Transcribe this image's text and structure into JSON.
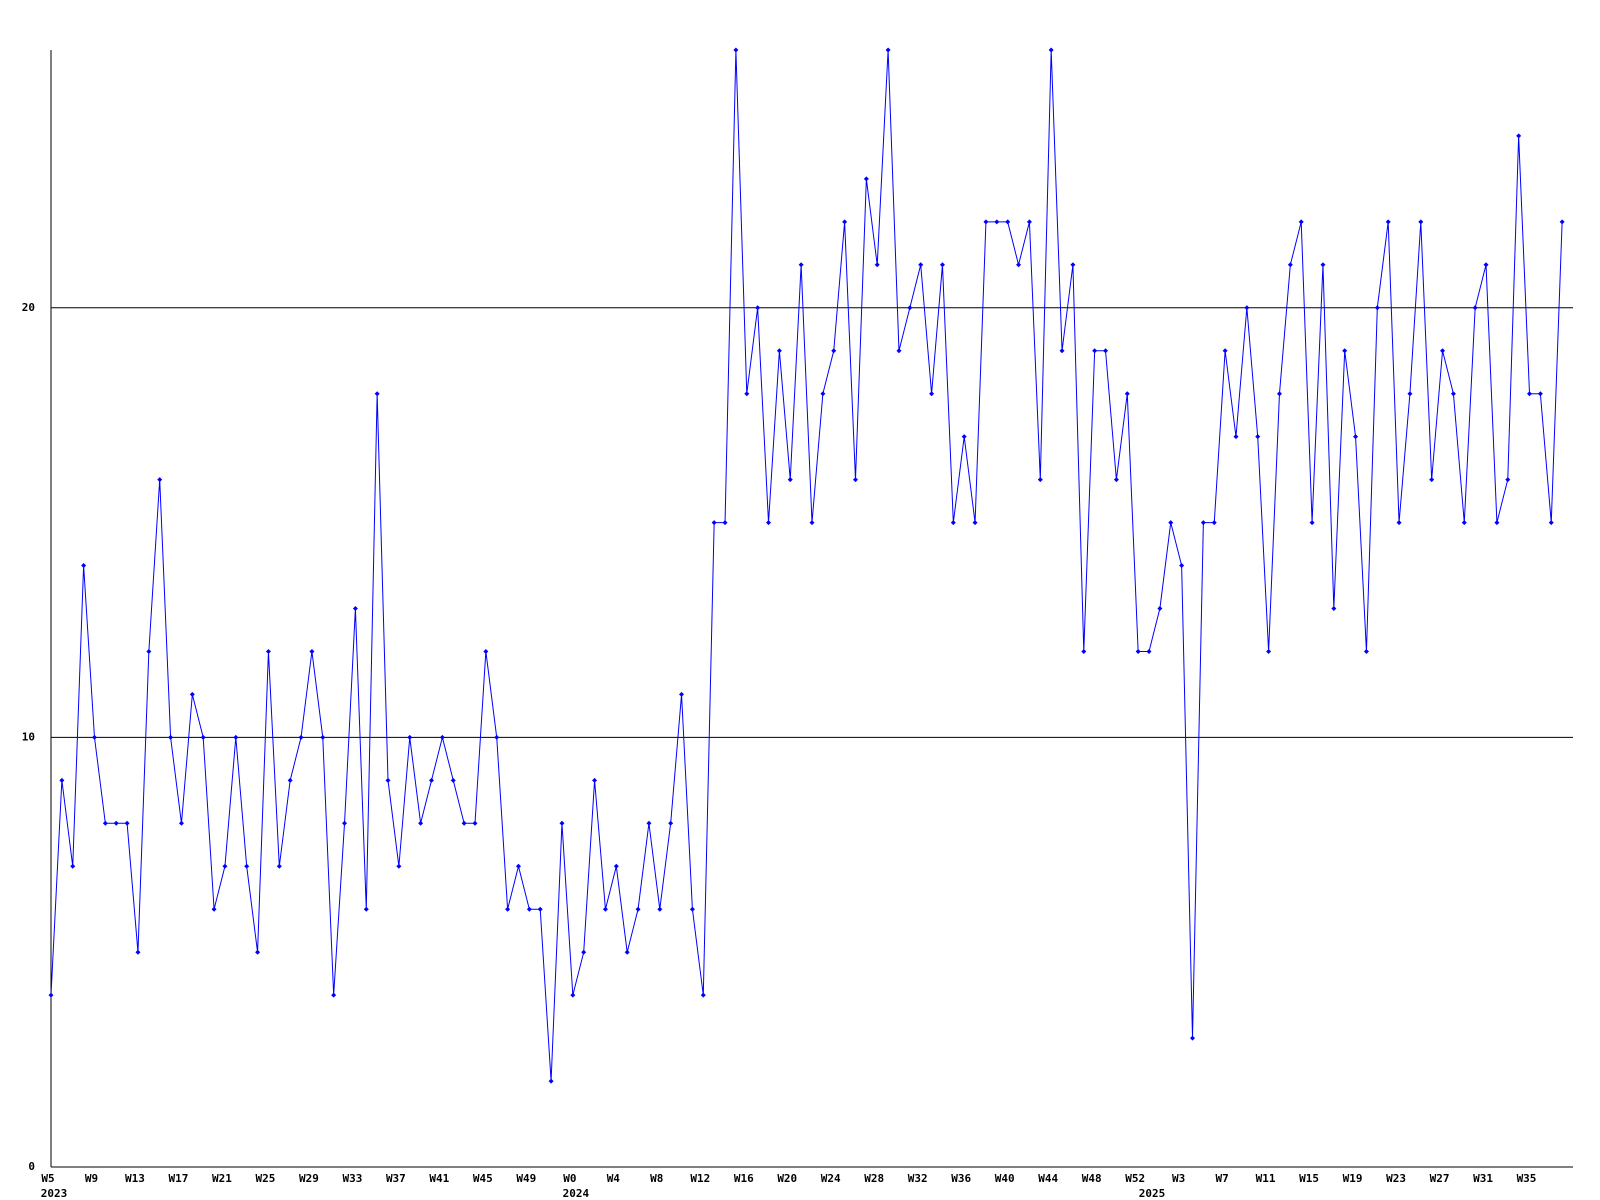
{
  "chart_data": {
    "type": "line",
    "categories": [
      "W5",
      null,
      null,
      null,
      "W9",
      null,
      null,
      null,
      "W13",
      null,
      null,
      null,
      "W17",
      null,
      null,
      null,
      "W21",
      null,
      null,
      null,
      "W25",
      null,
      null,
      null,
      "W29",
      null,
      null,
      null,
      "W33",
      null,
      null,
      null,
      "W37",
      null,
      null,
      null,
      "W41",
      null,
      null,
      null,
      "W45",
      null,
      null,
      null,
      "W49",
      null,
      null,
      null,
      "W0",
      null,
      null,
      null,
      "W4",
      null,
      null,
      null,
      "W8",
      null,
      null,
      null,
      "W12",
      null,
      null,
      null,
      "W16",
      null,
      null,
      null,
      "W20",
      null,
      null,
      null,
      "W24",
      null,
      null,
      null,
      "W28",
      null,
      null,
      null,
      "W32",
      null,
      null,
      null,
      "W36",
      null,
      null,
      null,
      "W40",
      null,
      null,
      null,
      "W44",
      null,
      null,
      null,
      "W48",
      null,
      null,
      null,
      "W52",
      null,
      null,
      null,
      "W3",
      null,
      null,
      null,
      "W7",
      null,
      null,
      null,
      "W11",
      null,
      null,
      null,
      "W15",
      null,
      null,
      null,
      "W19",
      null,
      null,
      null,
      "W23",
      null,
      null,
      null,
      "W27",
      null,
      null,
      null,
      "W31",
      null,
      null,
      null,
      "W35",
      null,
      null,
      null
    ],
    "years": [
      "2023",
      null,
      null,
      null,
      null,
      null,
      null,
      null,
      null,
      null,
      null,
      null,
      null,
      null,
      null,
      null,
      null,
      null,
      null,
      null,
      null,
      null,
      null,
      null,
      null,
      null,
      null,
      null,
      null,
      null,
      null,
      null,
      null,
      null,
      null,
      null,
      null,
      null,
      null,
      null,
      null,
      null,
      null,
      null,
      null,
      null,
      null,
      null,
      "2024",
      null,
      null,
      null,
      null,
      null,
      null,
      null,
      null,
      null,
      null,
      null,
      null,
      null,
      null,
      null,
      null,
      null,
      null,
      null,
      null,
      null,
      null,
      null,
      null,
      null,
      null,
      null,
      null,
      null,
      null,
      null,
      null,
      null,
      null,
      null,
      null,
      null,
      null,
      null,
      null,
      null,
      null,
      null,
      null,
      null,
      null,
      null,
      null,
      null,
      null,
      null,
      null,
      "2025",
      null,
      null,
      null,
      null,
      null,
      null,
      null,
      null,
      null,
      null,
      null,
      null,
      null,
      null,
      null,
      null,
      null,
      null,
      null,
      null,
      null,
      null,
      null,
      null,
      null,
      null,
      null,
      null,
      null,
      null,
      null,
      null,
      null,
      null,
      null,
      null,
      null,
      null
    ],
    "values": [
      4,
      9,
      7,
      14,
      10,
      8,
      8,
      8,
      5,
      12,
      16,
      10,
      8,
      11,
      10,
      6,
      7,
      10,
      7,
      5,
      12,
      7,
      9,
      10,
      12,
      10,
      4,
      8,
      13,
      6,
      18,
      9,
      7,
      10,
      8,
      9,
      10,
      9,
      8,
      8,
      12,
      10,
      6,
      7,
      6,
      6,
      2,
      8,
      4,
      5,
      9,
      6,
      7,
      5,
      6,
      8,
      6,
      8,
      11,
      6,
      4,
      15,
      15,
      26,
      18,
      20,
      15,
      19,
      16,
      21,
      15,
      18,
      19,
      22,
      16,
      23,
      21,
      26,
      19,
      20,
      21,
      18,
      21,
      15,
      17,
      15,
      22,
      22,
      22,
      21,
      22,
      16,
      26,
      19,
      21,
      12,
      19,
      19,
      16,
      18,
      12,
      12,
      13,
      15,
      14,
      3,
      15,
      15,
      19,
      17,
      20,
      17,
      12,
      18,
      21,
      22,
      15,
      21,
      13,
      19,
      17,
      12,
      20,
      22,
      15,
      18,
      22,
      16,
      19,
      18,
      15,
      20,
      21,
      15,
      16,
      24,
      18,
      18,
      15,
      22
    ],
    "color": "#0000ff",
    "ylim": [
      0,
      26
    ],
    "yticks": [
      0,
      10,
      20
    ],
    "grid": true
  }
}
